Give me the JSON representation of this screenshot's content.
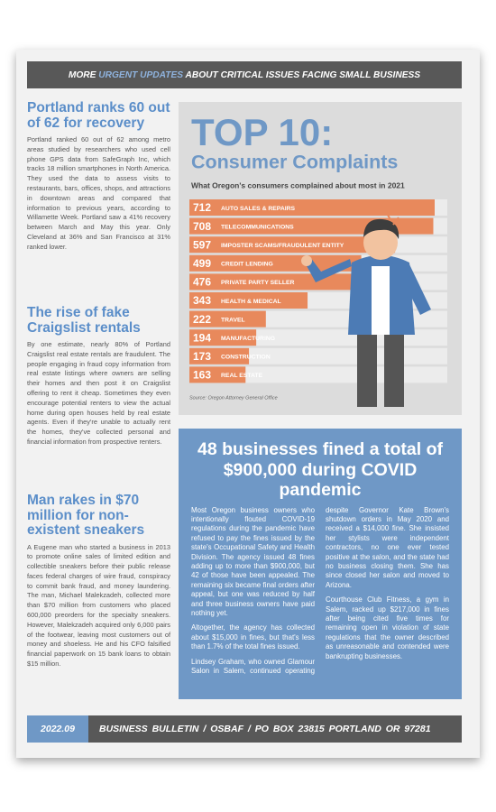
{
  "header": {
    "parts": [
      "MORE ",
      "URGENT UPDATES",
      " ABOUT CRITICAL ISSUES FACING SMALL BUSINESS"
    ]
  },
  "articles": [
    {
      "title": "Portland ranks 60 out of 62 for recovery",
      "body": "Portland ranked 60 out of 62 among metro areas studied by researchers who used cell phone GPS data from SafeGraph Inc, which tracks 18 million smartphones in North America. They used the data to assess visits to restaurants, bars, offices, shops, and attractions in downtown areas and compared that information to previous years, according to Willamette Week. Portland saw a 41% recovery between March and May this year. Only Cleveland at 36% and San Francisco at 31% ranked lower."
    },
    {
      "title": "The rise of fake Craigslist rentals",
      "body": "By one estimate, nearly 80% of Portland Craigslist real estate rentals are fraudulent. The people engaging in fraud copy information from real estate listings where owners are selling their homes and then post it on Craigslist offering to rent it cheap. Sometimes they even encourage potential renters to view the actual home during open houses held by real estate agents. Even if they're unable to actually rent the homes, they've collected personal and financial information from prospective renters."
    },
    {
      "title": "Man rakes in $70 million for non-existent sneakers",
      "body": "A Eugene man who started a business in 2013 to promote online sales of limited edition and collectible sneakers before their public release faces federal charges of wire fraud, conspiracy to commit bank fraud, and money laundering. The man, Michael Malekzadeh, collected more than $70 million from customers who placed 600,000 preorders for the specialty sneakers. However, Malekzadeh acquired only 6,000 pairs of the footwear, leaving most customers out of money and shoeless. He and his CFO falsified financial paperwork on 15 bank loans to obtain $15 million."
    }
  ],
  "chart_data": {
    "type": "bar",
    "title": "TOP 10:",
    "subtitle": "Consumer Complaints",
    "caption": "What Oregon's consumers complained about most in 2021",
    "categories": [
      "AUTO SALES & REPAIRS",
      "TELECOMMUNICATIONS",
      "IMPOSTER SCAMS/FRAUDULENT ENTITY",
      "CREDIT LENDING",
      "PRIVATE PARTY SELLER",
      "HEALTH & MEDICAL",
      "TRAVEL",
      "MANUFACTURING",
      "CONSTRUCTION",
      "REAL ESTATE"
    ],
    "values": [
      712,
      708,
      597,
      499,
      476,
      343,
      222,
      194,
      173,
      163
    ],
    "color": "#e8895c",
    "source": "Source: Oregon Attorney General Office"
  },
  "feature": {
    "title": "48 businesses fined a total of $900,000 during COVID pandemic",
    "paragraphs": [
      "Most Oregon business owners who intentionally flouted COVID-19 regulations during the pandemic have refused to pay the fines issued by the state's Occupational Safety and Health Division. The agency issued 48 fines adding up to more than $900,000, but 42 of those have been appealed. The remaining six became final orders after appeal, but one was reduced by half and three business owners have paid nothing yet.",
      "Altogether, the agency has collected about $15,000 in fines, but that's less than 1.7% of the total fines issued.",
      "Lindsey Graham, who owned Glamour Salon in Salem, continued operating despite Governor Kate Brown's shutdown orders in May 2020 and received a $14,000 fine. She insisted her stylists were independent contractors, no one ever tested positive at the salon, and the state had no business closing them. She has since closed her salon and moved to Arizona.",
      "Courthouse Club Fitness, a gym in Salem, racked up $217,000 in fines after being cited five times for remaining open in violation of state regulations that the owner described as unreasonable and contended were bankrupting businesses."
    ]
  },
  "footer": {
    "date": "2022.09",
    "text": "BUSINESS BULLETIN / OSBAF / PO BOX 23815 PORTLAND OR 97281"
  }
}
